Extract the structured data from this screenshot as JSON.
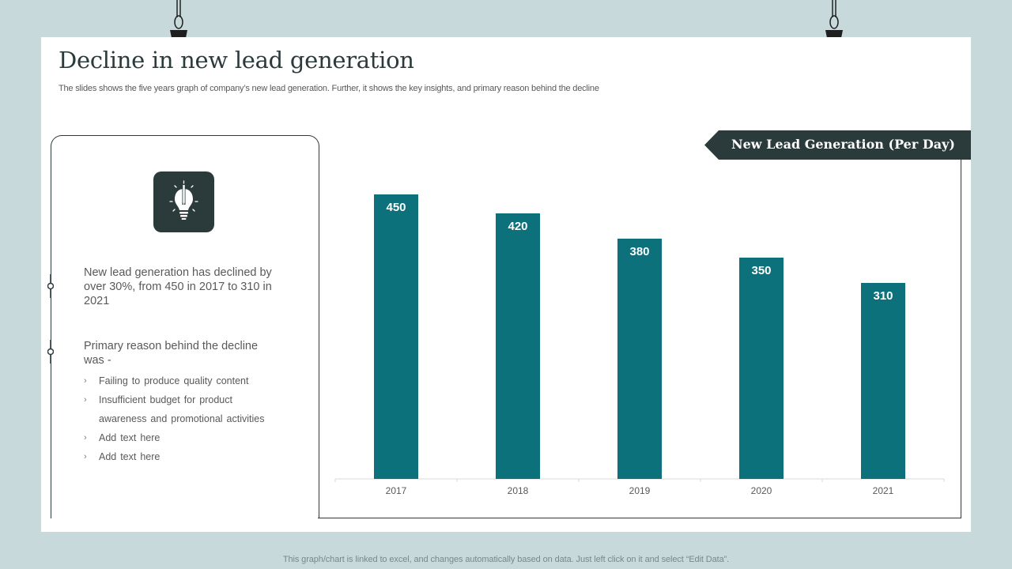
{
  "slide": {
    "title": "Decline in new lead generation",
    "subtitle": "The slides shows the five years graph of company’s new lead generation. Further, it shows the key insights, and primary reason behind the decline",
    "footer": "This graph/chart is linked to excel,  and changes automatically based on data. Just left click on it and select “Edit Data”."
  },
  "insights": {
    "icon": "lightbulb-pencil-icon",
    "decline_text": "New lead generation has declined by over 30%, from 450 in 2017 to 310 in 2021",
    "reason_heading": "Primary reason behind the decline was -",
    "reasons": [
      "Failing to produce  quality content",
      "Insufficient  budget  for product awareness  and  promotional  activities",
      "Add text here",
      "Add text here"
    ]
  },
  "colors": {
    "background": "#c7d9da",
    "dark": "#2b3a3b",
    "bar": "#0c717a",
    "text": "#595959"
  },
  "chart_data": {
    "type": "bar",
    "title": "New Lead Generation (Per Day)",
    "categories": [
      "2017",
      "2018",
      "2019",
      "2020",
      "2021"
    ],
    "values": [
      450,
      420,
      380,
      350,
      310
    ],
    "xlabel": "",
    "ylabel": "",
    "ylim": [
      0,
      500
    ],
    "grid": false,
    "legend": "none"
  }
}
